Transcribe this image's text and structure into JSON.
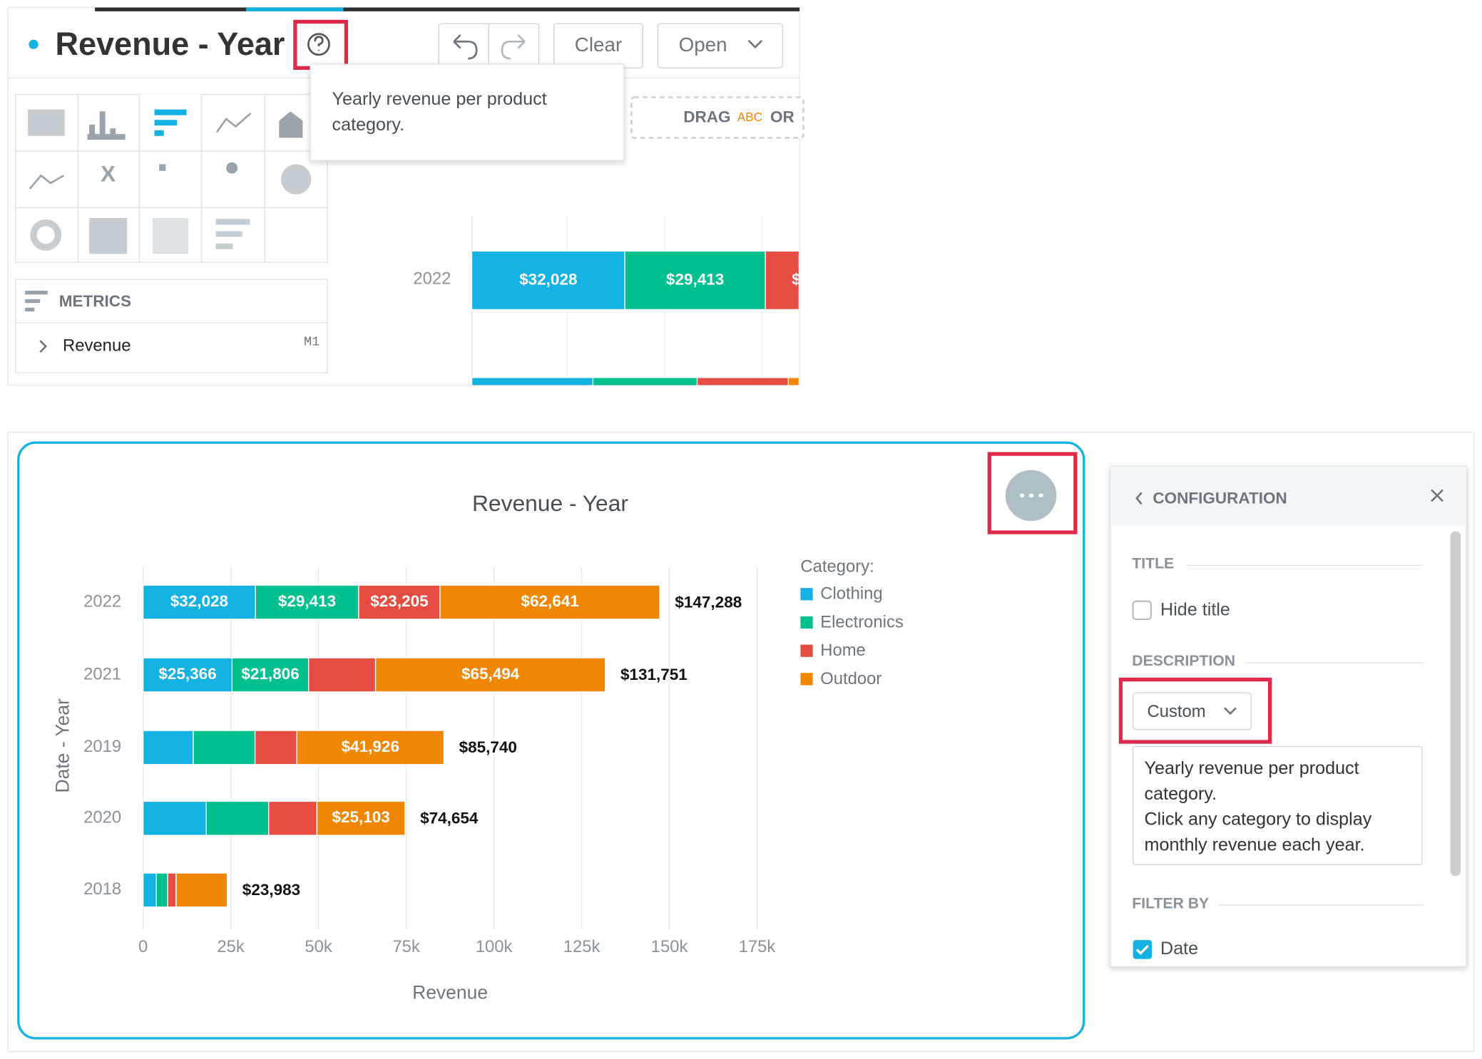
{
  "editor": {
    "title": "Revenue - Year",
    "buttons": {
      "clear": "Clear",
      "open": "Open"
    },
    "tooltip_lines": [
      "Yearly revenue per product",
      "category."
    ],
    "drop_zone": [
      "DRAG",
      "ABC",
      "OR"
    ],
    "metrics": {
      "header": "METRICS",
      "item": "Revenue",
      "id": "M1"
    }
  },
  "chart_data": {
    "type": "bar",
    "orientation": "horizontal",
    "stacked": true,
    "title": "Revenue - Year",
    "x_label": "Revenue",
    "y_label": "Date - Year",
    "legend_title": "Category:",
    "categories": [
      "2022",
      "2021",
      "2019",
      "2020",
      "2018"
    ],
    "series": [
      {
        "name": "Clothing",
        "color": "#14b2e2",
        "values": [
          32028,
          25366,
          14300,
          18000,
          3800
        ],
        "value_labels": [
          "$32,028",
          "$25,366",
          null,
          null,
          null
        ]
      },
      {
        "name": "Electronics",
        "color": "#00c18d",
        "values": [
          29413,
          21806,
          17600,
          17800,
          3200
        ],
        "value_labels": [
          "$29,413",
          "$21,806",
          null,
          null,
          null
        ]
      },
      {
        "name": "Home",
        "color": "#e54d42",
        "values": [
          23205,
          19085,
          11914,
          13751,
          2400
        ],
        "value_labels": [
          "$23,205",
          null,
          null,
          null,
          null
        ]
      },
      {
        "name": "Outdoor",
        "color": "#f18600",
        "values": [
          62641,
          65494,
          41926,
          25103,
          14583
        ],
        "value_labels": [
          "$62,641",
          "$65,494",
          "$41,926",
          "$25,103",
          null
        ]
      }
    ],
    "totals": [
      147288,
      131751,
      85740,
      74654,
      23983
    ],
    "total_labels": [
      "$147,288",
      "$131,751",
      "$85,740",
      "$74,654",
      "$23,983"
    ],
    "xlim": [
      0,
      175000
    ],
    "xticks": [
      0,
      {
        "value": 25000,
        "label": "25k"
      },
      {
        "value": 50000,
        "label": "50k"
      },
      {
        "value": 75000,
        "label": "75k"
      },
      {
        "value": 100000,
        "label": "100k"
      },
      {
        "value": 125000,
        "label": "125k"
      },
      {
        "value": 150000,
        "label": "150k"
      },
      {
        "value": 175000,
        "label": "175k"
      }
    ],
    "grid": true
  },
  "configuration": {
    "header": "CONFIGURATION",
    "title_section": "TITLE",
    "hide_title": "Hide title",
    "description_section": "DESCRIPTION",
    "description_mode": "Custom",
    "description_lines": [
      "Yearly revenue per product",
      "category.",
      "Click any category to display",
      "monthly revenue each year."
    ],
    "filter_section": "FILTER BY",
    "filter_item": "Date"
  }
}
